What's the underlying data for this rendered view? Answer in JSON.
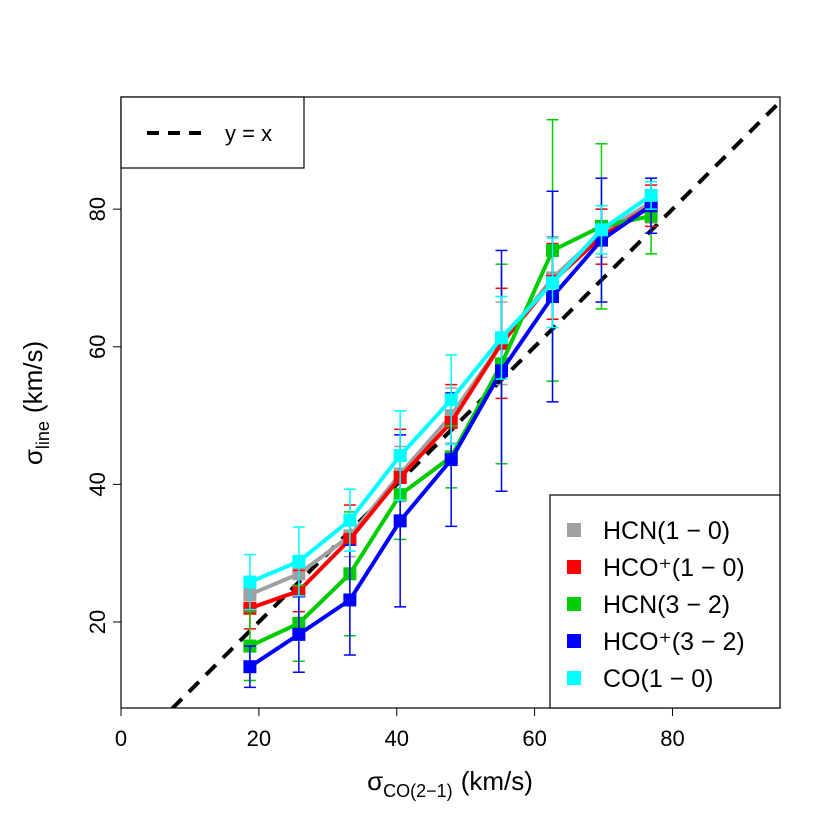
{
  "chart_data": {
    "type": "line",
    "x_label": {
      "symbol": "σ",
      "subscript": "CO(2−1)",
      "unit": "(km/s)"
    },
    "y_label": {
      "symbol": "σ",
      "subscript": "line",
      "unit": "(km/s)"
    },
    "reference_line": {
      "name": "y = x",
      "color": "#000000"
    },
    "x": [
      18.7,
      25.8,
      33.2,
      40.5,
      47.9,
      55.2,
      62.6,
      69.7,
      76.9
    ],
    "series": [
      {
        "name": "HCN(1 − 0)",
        "color": "#a0a0a0",
        "values": [
          24,
          27,
          32.5,
          41.5,
          50,
          60.5,
          70,
          76.5,
          81
        ],
        "errors": [
          2.5,
          2.5,
          3,
          4,
          4,
          6,
          6,
          3.5,
          3
        ]
      },
      {
        "name": "HCO⁺(1 − 0)",
        "color": "#ff0000",
        "values": [
          22,
          24.5,
          32,
          41,
          49,
          60.5,
          69.5,
          76,
          80.5
        ],
        "errors": [
          3,
          3,
          5,
          7,
          5.5,
          8,
          5.5,
          4,
          3
        ]
      },
      {
        "name": "HCN(3 − 2)",
        "color": "#00cd00",
        "values": [
          16.5,
          19.8,
          27,
          38.5,
          44,
          57.5,
          74,
          77.5,
          79
        ],
        "errors": [
          5,
          5.5,
          9,
          6.5,
          4.5,
          14.5,
          19,
          12,
          5.5
        ]
      },
      {
        "name": "HCO⁺(3 − 2)",
        "color": "#0000ff",
        "values": [
          13.5,
          18.2,
          23.2,
          34.7,
          43.6,
          56.5,
          67.3,
          75.5,
          80.5
        ],
        "errors": [
          3,
          5.5,
          8,
          12.5,
          9.7,
          17.5,
          15.3,
          9,
          4
        ]
      },
      {
        "name": "CO(1 − 0)",
        "color": "#00ffff",
        "values": [
          25.8,
          28.8,
          34.8,
          44.2,
          52.3,
          61.3,
          69.3,
          77,
          82
        ],
        "errors": [
          4,
          5,
          4.5,
          6.5,
          6.5,
          6,
          6.5,
          3.5,
          2
        ]
      }
    ],
    "xlim": [
      0,
      95.6
    ],
    "ylim": [
      7.5,
      96.3
    ],
    "xticks": [
      0,
      20,
      40,
      60,
      80
    ],
    "yticks": [
      20,
      40,
      60,
      80
    ],
    "grid": false
  }
}
